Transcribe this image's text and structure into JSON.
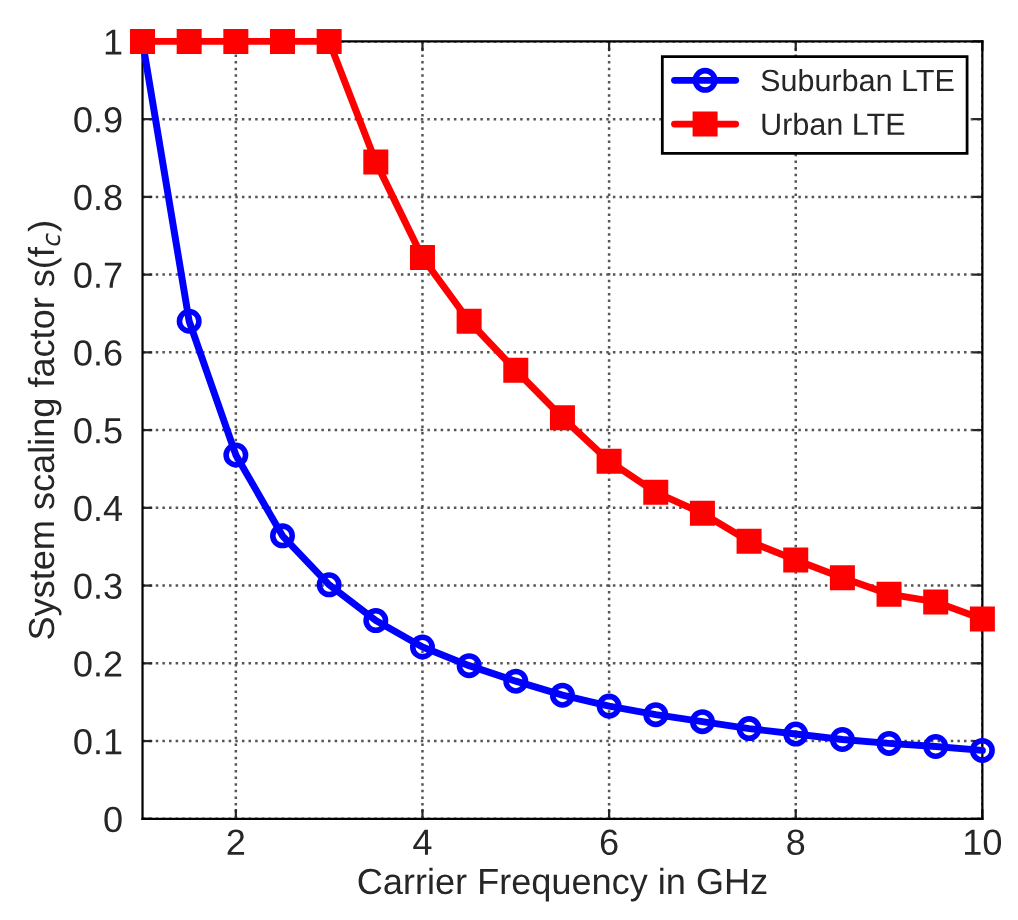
{
  "chart_data": {
    "type": "line",
    "xlabel": "Carrier Frequency in GHz",
    "ylabel": "System scaling factor s(f$_{c}$)",
    "x": [
      1,
      1.5,
      2,
      2.5,
      3,
      3.5,
      4,
      4.5,
      5,
      5.5,
      6,
      6.5,
      7,
      7.5,
      8,
      8.5,
      9,
      9.5,
      10
    ],
    "series": [
      {
        "name": "Suburban LTE",
        "color": "#0000ff",
        "marker": "circle",
        "values": [
          1,
          0.64,
          0.468,
          0.364,
          0.301,
          0.255,
          0.221,
          0.197,
          0.177,
          0.159,
          0.145,
          0.134,
          0.125,
          0.116,
          0.109,
          0.102,
          0.097,
          0.093,
          0.088
        ]
      },
      {
        "name": "Urban LTE",
        "color": "#ff0000",
        "marker": "square",
        "values": [
          1,
          1,
          1,
          1,
          1,
          0.845,
          0.722,
          0.64,
          0.577,
          0.516,
          0.46,
          0.42,
          0.393,
          0.357,
          0.333,
          0.31,
          0.289,
          0.279,
          0.257
        ]
      }
    ],
    "xlim": [
      1,
      10
    ],
    "xticks": [
      2,
      4,
      6,
      8,
      10
    ],
    "ylim": [
      0,
      1
    ],
    "yticks": [
      0,
      0.1,
      0.2,
      0.3,
      0.4,
      0.5,
      0.6,
      0.7,
      0.8,
      0.9,
      1
    ],
    "grid": true,
    "legend": "top right",
    "line_style": "solid"
  }
}
